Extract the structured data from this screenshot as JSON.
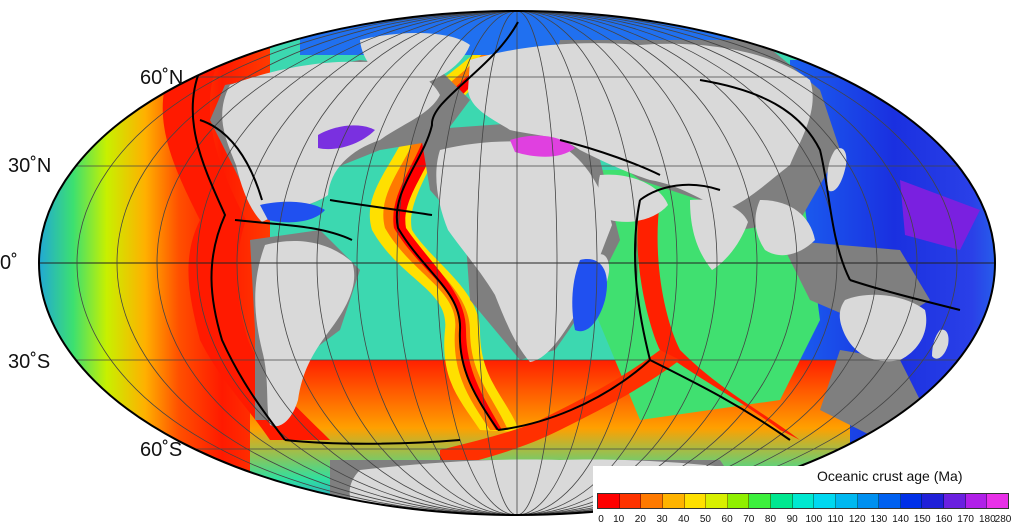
{
  "latitude_labels": {
    "lat60n": "60˚N",
    "lat30n": "30˚N",
    "eq": "0˚",
    "lat30s": "30˚S",
    "lat60s": "60˚S"
  },
  "legend": {
    "title": "Oceanic crust age (Ma)",
    "ticks": [
      "0",
      "10",
      "20",
      "30",
      "40",
      "50",
      "60",
      "70",
      "80",
      "90",
      "100",
      "110",
      "120",
      "130",
      "140",
      "150",
      "160",
      "170",
      "180",
      "280"
    ],
    "colors": [
      "#ff0000",
      "#ff3300",
      "#ff7a00",
      "#ffb300",
      "#ffe000",
      "#d8f000",
      "#90f000",
      "#3cf03c",
      "#00e890",
      "#00e8d0",
      "#00d8f0",
      "#00b8f0",
      "#0090f0",
      "#0060f0",
      "#0030e8",
      "#2020d8",
      "#6a20e0",
      "#b020e8",
      "#e830e8"
    ]
  },
  "colors": {
    "land": "#d9d9d9",
    "shelf": "#7f7f7f",
    "ridge": "#000000",
    "boundary": "#000000"
  }
}
